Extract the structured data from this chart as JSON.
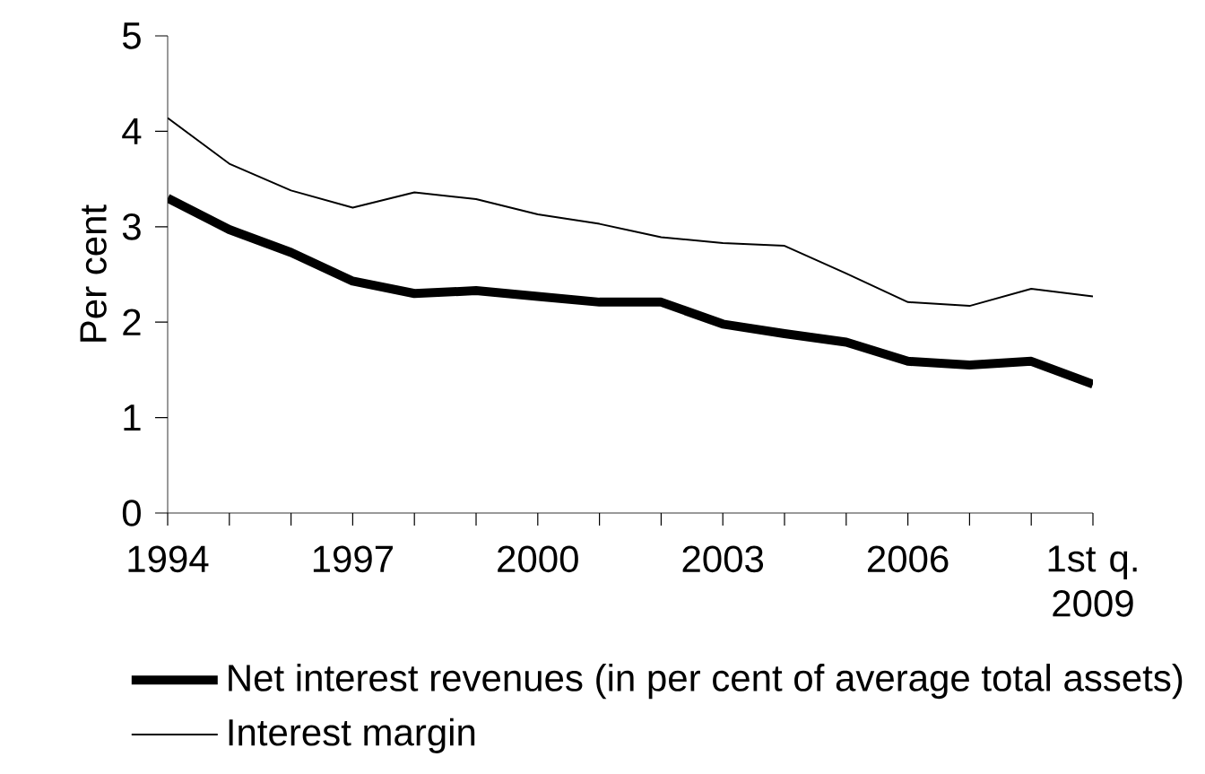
{
  "chart_data": {
    "type": "line",
    "ylabel": "Per cent",
    "categories": [
      "1994",
      null,
      null,
      "1997",
      null,
      null,
      "2000",
      null,
      null,
      "2003",
      null,
      null,
      "2006",
      null,
      null,
      "1st q. 2009"
    ],
    "series": [
      {
        "name": "Net interest revenues (in per cent of average total assets)",
        "color": "#000000",
        "values": [
          3.3,
          2.97,
          2.73,
          2.43,
          2.3,
          2.33,
          2.27,
          2.21,
          2.21,
          1.98,
          1.88,
          1.79,
          1.59,
          1.55,
          1.59,
          1.35
        ]
      },
      {
        "name": "Interest margin",
        "color": "#000000",
        "values": [
          4.14,
          3.66,
          3.38,
          3.2,
          3.36,
          3.29,
          3.13,
          3.03,
          2.89,
          2.83,
          2.8,
          2.51,
          2.21,
          2.17,
          2.35,
          2.27
        ]
      }
    ],
    "ylim": [
      0,
      5
    ],
    "yticks": [
      0,
      1,
      2,
      3,
      4,
      5
    ],
    "grid": false,
    "legend": "bottom",
    "marker": "none",
    "line_style": "solid"
  }
}
